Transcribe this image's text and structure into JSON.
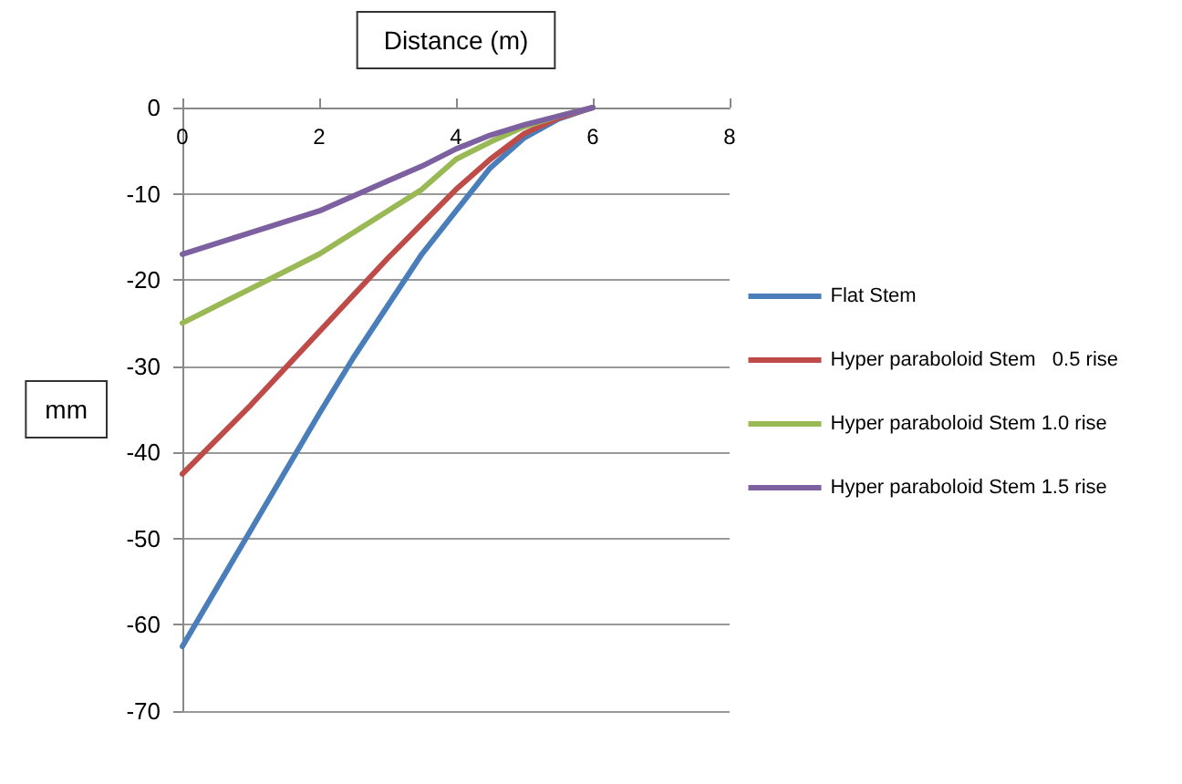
{
  "chart_data": {
    "type": "line",
    "xlabel": "Distance (m)",
    "ylabel": "mm",
    "xlim": [
      0,
      8
    ],
    "xticks": [
      0,
      2,
      4,
      6,
      8
    ],
    "ylim": [
      -70,
      0
    ],
    "yticks": [
      -70,
      -60,
      -50,
      -40,
      -30,
      -20,
      -10,
      0
    ],
    "grid": "y",
    "legend": "right",
    "marker": "none",
    "line_style": "solid",
    "series": [
      {
        "name": "Flat Stem",
        "color": "#4a7ebb",
        "x": [
          0,
          1,
          2,
          2.5,
          3,
          3.5,
          4,
          4.5,
          5,
          5.5,
          6
        ],
        "values": [
          -62.5,
          -49,
          -35.5,
          -29,
          -23,
          -17,
          -12,
          -7,
          -3.5,
          -1.3,
          0
        ]
      },
      {
        "name": "Hyper paraboloid Stem   0.5 rise",
        "color": "#be4b48",
        "x": [
          0,
          1,
          2,
          3,
          3.5,
          4,
          4.5,
          5,
          5.5,
          6
        ],
        "values": [
          -42.5,
          -34.5,
          -26,
          -17.5,
          -13.5,
          -9.5,
          -6,
          -3,
          -1.2,
          0
        ]
      },
      {
        "name": "Hyper paraboloid Stem 1.0 rise",
        "color": "#98b954",
        "x": [
          0,
          1,
          2,
          3,
          3.5,
          4,
          4.5,
          5,
          5.5,
          6
        ],
        "values": [
          -25,
          -21,
          -17,
          -12,
          -9.5,
          -6,
          -4,
          -2.2,
          -1,
          0
        ]
      },
      {
        "name": "Hyper paraboloid Stem 1.5 rise",
        "color": "#7d60a0",
        "x": [
          0,
          1,
          2,
          3,
          3.5,
          4,
          4.5,
          5,
          5.5,
          6
        ],
        "values": [
          -17,
          -14.5,
          -12,
          -8.5,
          -6.8,
          -4.8,
          -3.2,
          -2,
          -1,
          0
        ]
      }
    ]
  }
}
